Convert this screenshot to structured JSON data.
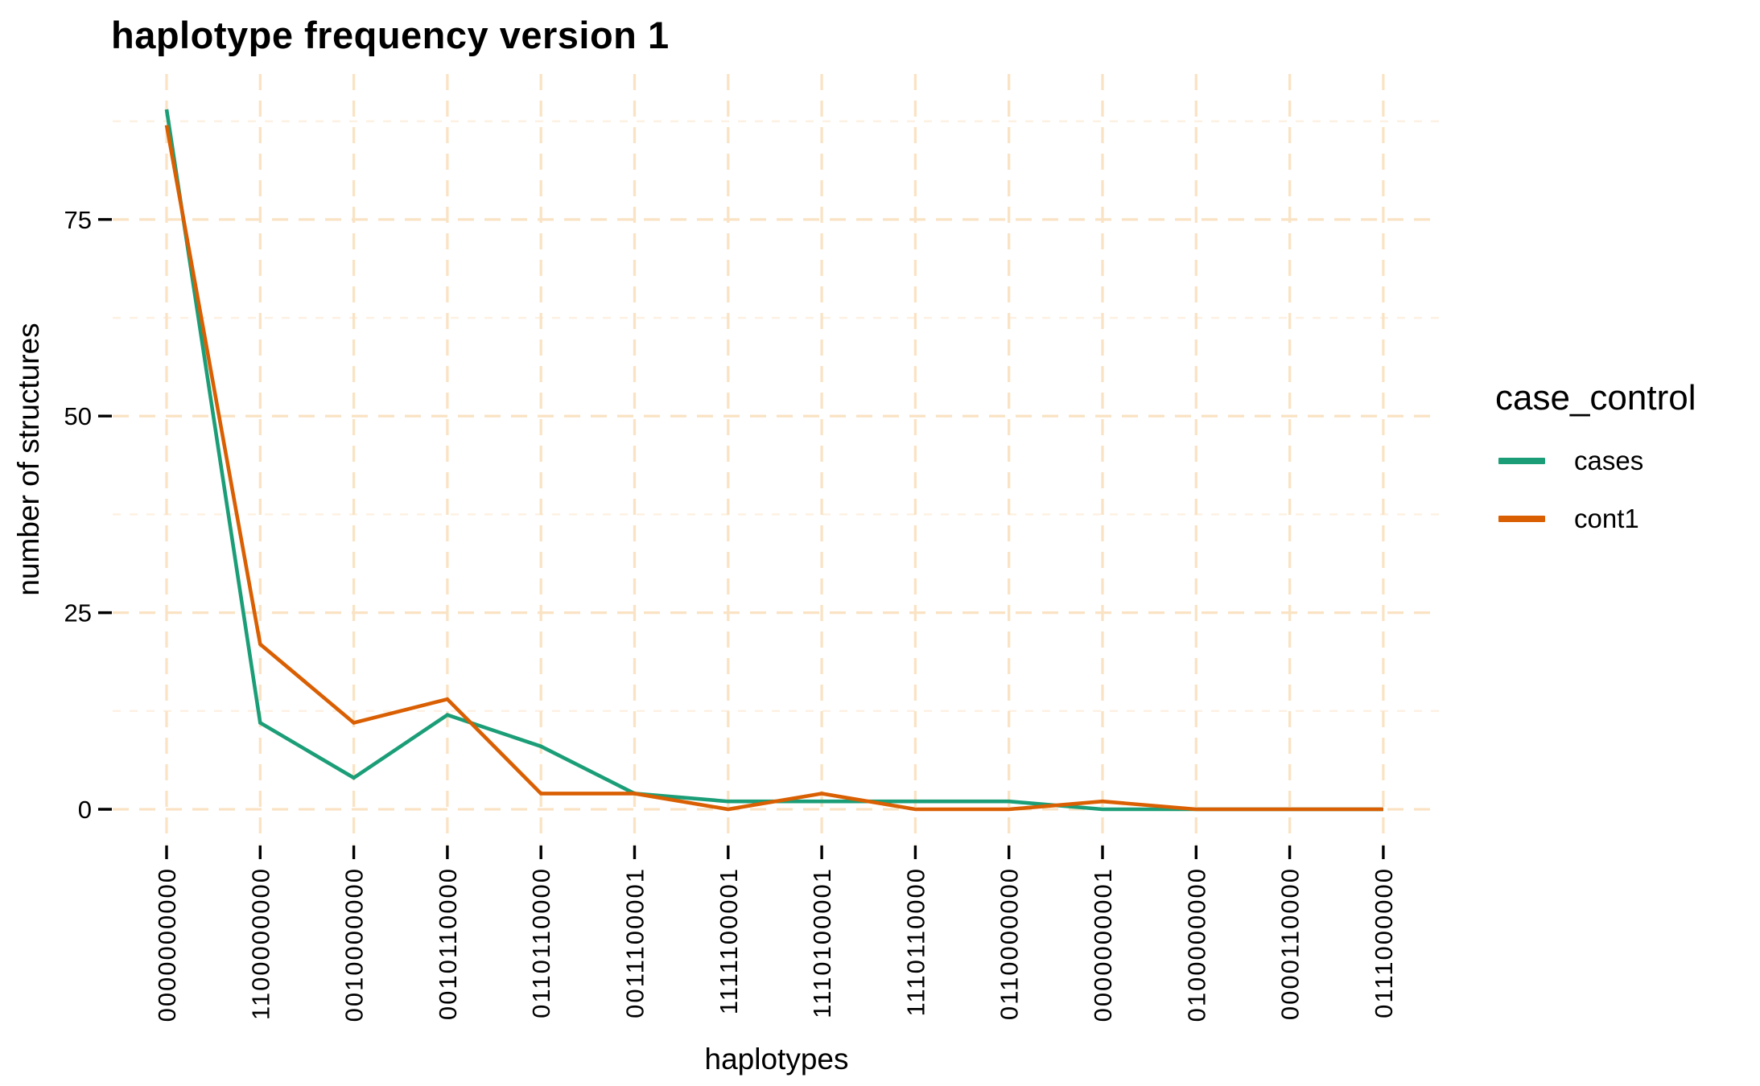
{
  "title": "haplotype frequency version 1",
  "axes": {
    "x_label": "haplotypes",
    "y_label": "number of structures",
    "y_tick_labels": [
      "0",
      "25",
      "50",
      "75"
    ]
  },
  "legend": {
    "title": "case_control",
    "entries": [
      {
        "label": "cases",
        "color": "#1B9E77"
      },
      {
        "label": "cont1",
        "color": "#D95F02"
      }
    ]
  },
  "colors": {
    "background": "#ffffff",
    "grid_major": "#FAE3C4",
    "grid_minor": "#FDF0E1",
    "tick": "#000000",
    "text": "#000000",
    "series_cases": "#1B9E77",
    "series_cont1": "#D95F02"
  },
  "chart_data": {
    "type": "line",
    "title": "haplotype frequency version 1",
    "xlabel": "haplotypes",
    "ylabel": "number of structures",
    "categories": [
      "0000000000",
      "1100000000",
      "0010000000",
      "0010110000",
      "0110110000",
      "0011100001",
      "1111100001",
      "1110100001",
      "1110110000",
      "0110000000",
      "0000000001",
      "0100000000",
      "0000110000",
      "0111000000"
    ],
    "series": [
      {
        "name": "cases",
        "color": "#1B9E77",
        "values": [
          89,
          11,
          4,
          12,
          8,
          2,
          1,
          1,
          1,
          1,
          0,
          0,
          0,
          0
        ]
      },
      {
        "name": "cont1",
        "color": "#D95F02",
        "values": [
          87,
          21,
          11,
          14,
          2,
          2,
          0,
          2,
          0,
          0,
          1,
          0,
          0,
          0
        ]
      }
    ],
    "ylim": [
      -4.5,
      93.5
    ],
    "y_major_ticks": [
      0,
      25,
      50,
      75
    ],
    "y_minor_ticks": [
      12.5,
      37.5,
      62.5,
      87.5
    ],
    "grid": "dashed",
    "legend_position": "right",
    "x_tick_rotation": 90
  }
}
